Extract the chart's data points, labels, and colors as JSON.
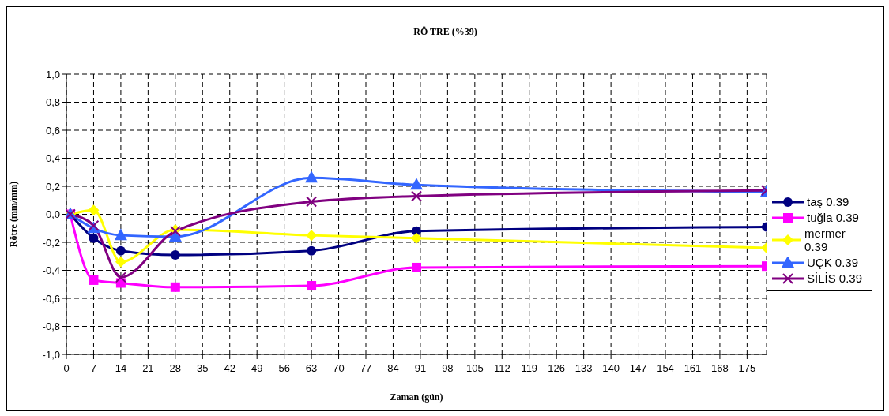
{
  "chart_data": {
    "type": "line",
    "title": "RÖ TRE (%39)",
    "xlabel": "Zaman (gün)",
    "ylabel": "Rötre (mm/mm)",
    "x": [
      1,
      7,
      14,
      28,
      63,
      90,
      180
    ],
    "series": [
      {
        "name": "taş 0.39",
        "color": "#000080",
        "marker": "circle",
        "values": [
          0,
          -0.17,
          -0.26,
          -0.29,
          -0.26,
          -0.12,
          -0.09
        ]
      },
      {
        "name": "tuğla 0.39",
        "color": "#ff00ff",
        "marker": "square",
        "values": [
          0,
          -0.47,
          -0.49,
          -0.52,
          -0.51,
          -0.38,
          -0.37
        ]
      },
      {
        "name": "mermer 0.39",
        "color": "#ffff00",
        "marker": "diamond",
        "values": [
          0,
          0.03,
          -0.34,
          -0.11,
          -0.15,
          -0.17,
          -0.24
        ]
      },
      {
        "name": "UÇK 0.39",
        "color": "#3366ff",
        "marker": "triangle",
        "values": [
          0,
          -0.1,
          -0.15,
          -0.16,
          0.26,
          0.21,
          0.16
        ]
      },
      {
        "name": "SİLİS 0.39",
        "color": "#800080",
        "marker": "cross",
        "values": [
          0,
          -0.08,
          -0.45,
          -0.12,
          0.09,
          0.13,
          0.17
        ]
      }
    ],
    "xlim": [
      0,
      180
    ],
    "xticks": [
      0,
      7,
      14,
      21,
      28,
      35,
      42,
      49,
      56,
      63,
      70,
      77,
      84,
      91,
      98,
      105,
      112,
      119,
      126,
      133,
      140,
      147,
      154,
      161,
      168,
      175
    ],
    "ylim": [
      -1,
      1
    ],
    "yticks": [
      {
        "value": -1,
        "label": "-1,0"
      },
      {
        "value": -0.8,
        "label": "-0,8"
      },
      {
        "value": -0.6,
        "label": "-0,6"
      },
      {
        "value": -0.4,
        "label": "-0,4"
      },
      {
        "value": -0.2,
        "label": "-0,2"
      },
      {
        "value": 0,
        "label": "0,0"
      },
      {
        "value": 0.2,
        "label": "0,2"
      },
      {
        "value": 0.4,
        "label": "0,4"
      },
      {
        "value": 0.6,
        "label": "0,6"
      },
      {
        "value": 0.8,
        "label": "0,8"
      },
      {
        "value": 1,
        "label": "1,0"
      }
    ],
    "grid": true,
    "line_style": "solid",
    "legend": "right"
  }
}
